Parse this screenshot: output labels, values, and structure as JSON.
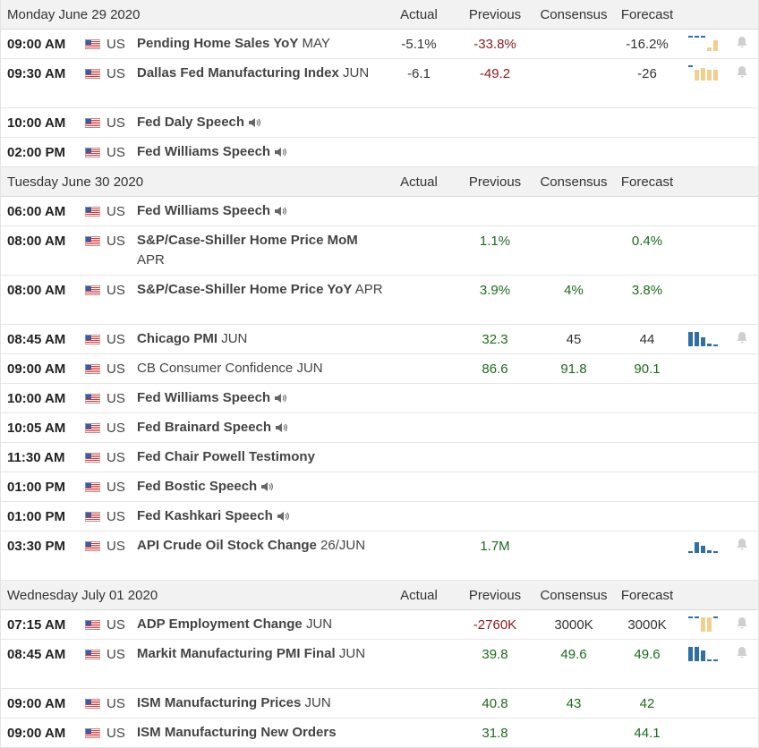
{
  "columns": {
    "actual": "Actual",
    "previous": "Previous",
    "consensus": "Consensus",
    "forecast": "Forecast"
  },
  "days": [
    {
      "title": "Monday June 29 2020",
      "events": [
        {
          "time": "09:00 AM",
          "country": "US",
          "name": "Pending Home Sales YoY",
          "suffix": "MAY",
          "actual": "-5.1%",
          "actual_class": "neutral",
          "previous": "-33.8%",
          "previous_class": "neg",
          "consensus": "",
          "forecast": "-16.2%",
          "forecast_class": "neutral",
          "spark": "mixed-a",
          "tall": false,
          "bold": true,
          "speech": false
        },
        {
          "time": "09:30 AM",
          "country": "US",
          "name": "Dallas Fed Manufacturing Index",
          "suffix": "JUN",
          "actual": "-6.1",
          "actual_class": "neutral",
          "previous": "-49.2",
          "previous_class": "neg",
          "consensus": "",
          "forecast": "-26",
          "forecast_class": "neutral",
          "spark": "mixed-b",
          "tall": true,
          "bold": true,
          "speech": false
        },
        {
          "time": "10:00 AM",
          "country": "US",
          "name": "Fed Daly Speech",
          "suffix": "",
          "actual": "",
          "previous": "",
          "consensus": "",
          "forecast": "",
          "spark": "",
          "tall": false,
          "bold": true,
          "speech": true
        },
        {
          "time": "02:00 PM",
          "country": "US",
          "name": "Fed Williams Speech",
          "suffix": "",
          "actual": "",
          "previous": "",
          "consensus": "",
          "forecast": "",
          "spark": "",
          "tall": false,
          "bold": true,
          "speech": true
        }
      ]
    },
    {
      "title": "Tuesday June 30 2020",
      "events": [
        {
          "time": "06:00 AM",
          "country": "US",
          "name": "Fed Williams Speech",
          "suffix": "",
          "actual": "",
          "previous": "",
          "consensus": "",
          "forecast": "",
          "spark": "",
          "tall": false,
          "bold": true,
          "speech": true
        },
        {
          "time": "08:00 AM",
          "country": "US",
          "name": "S&P/Case-Shiller Home Price MoM",
          "suffix": "APR",
          "actual": "",
          "previous": "1.1%",
          "previous_class": "pos",
          "consensus": "",
          "forecast": "0.4%",
          "forecast_class": "pos",
          "spark": "",
          "tall": true,
          "bold": true,
          "speech": false
        },
        {
          "time": "08:00 AM",
          "country": "US",
          "name": "S&P/Case-Shiller Home Price YoY",
          "suffix": "APR",
          "actual": "",
          "previous": "3.9%",
          "previous_class": "pos",
          "consensus": "4%",
          "consensus_class": "pos",
          "forecast": "3.8%",
          "forecast_class": "pos",
          "spark": "",
          "tall": true,
          "bold": true,
          "speech": false
        },
        {
          "time": "08:45 AM",
          "country": "US",
          "name": "Chicago PMI",
          "suffix": "JUN",
          "actual": "",
          "previous": "32.3",
          "previous_class": "pos",
          "consensus": "45",
          "consensus_class": "neutral",
          "forecast": "44",
          "forecast_class": "neutral",
          "spark": "blue-a",
          "tall": false,
          "bold": true,
          "speech": false
        },
        {
          "time": "09:00 AM",
          "country": "US",
          "name": "CB Consumer Confidence",
          "suffix": "JUN",
          "actual": "",
          "previous": "86.6",
          "previous_class": "pos",
          "consensus": "91.8",
          "consensus_class": "pos",
          "forecast": "90.1",
          "forecast_class": "pos",
          "spark": "",
          "tall": false,
          "bold": false,
          "speech": false
        },
        {
          "time": "10:00 AM",
          "country": "US",
          "name": "Fed Williams Speech",
          "suffix": "",
          "actual": "",
          "previous": "",
          "consensus": "",
          "forecast": "",
          "spark": "",
          "tall": false,
          "bold": true,
          "speech": true
        },
        {
          "time": "10:05 AM",
          "country": "US",
          "name": "Fed Brainard Speech",
          "suffix": "",
          "actual": "",
          "previous": "",
          "consensus": "",
          "forecast": "",
          "spark": "",
          "tall": false,
          "bold": true,
          "speech": true
        },
        {
          "time": "11:30 AM",
          "country": "US",
          "name": "Fed Chair Powell Testimony",
          "suffix": "",
          "actual": "",
          "previous": "",
          "consensus": "",
          "forecast": "",
          "spark": "",
          "tall": false,
          "bold": true,
          "speech": false
        },
        {
          "time": "01:00 PM",
          "country": "US",
          "name": "Fed Bostic Speech",
          "suffix": "",
          "actual": "",
          "previous": "",
          "consensus": "",
          "forecast": "",
          "spark": "",
          "tall": false,
          "bold": true,
          "speech": true
        },
        {
          "time": "01:00 PM",
          "country": "US",
          "name": "Fed Kashkari Speech",
          "suffix": "",
          "actual": "",
          "previous": "",
          "consensus": "",
          "forecast": "",
          "spark": "",
          "tall": false,
          "bold": true,
          "speech": true
        },
        {
          "time": "03:30 PM",
          "country": "US",
          "name": "API Crude Oil Stock Change",
          "suffix": "26/JUN",
          "actual": "",
          "previous": "1.7M",
          "previous_class": "pos",
          "consensus": "",
          "forecast": "",
          "spark": "blue-b",
          "tall": true,
          "bold": true,
          "speech": false
        }
      ]
    },
    {
      "title": "Wednesday July 01 2020",
      "events": [
        {
          "time": "07:15 AM",
          "country": "US",
          "name": "ADP Employment Change",
          "suffix": "JUN",
          "actual": "",
          "previous": "-2760K",
          "previous_class": "neg",
          "consensus": "3000K",
          "consensus_class": "neutral",
          "forecast": "3000K",
          "forecast_class": "neutral",
          "spark": "mixed-c",
          "tall": false,
          "bold": true,
          "speech": false
        },
        {
          "time": "08:45 AM",
          "country": "US",
          "name": "Markit Manufacturing PMI Final",
          "suffix": "JUN",
          "actual": "",
          "previous": "39.8",
          "previous_class": "pos",
          "consensus": "49.6",
          "consensus_class": "pos",
          "forecast": "49.6",
          "forecast_class": "pos",
          "spark": "blue-c",
          "tall": true,
          "bold": true,
          "speech": false
        },
        {
          "time": "09:00 AM",
          "country": "US",
          "name": "ISM Manufacturing Prices",
          "suffix": "JUN",
          "actual": "",
          "previous": "40.8",
          "previous_class": "pos",
          "consensus": "43",
          "consensus_class": "pos",
          "forecast": "42",
          "forecast_class": "pos",
          "spark": "",
          "tall": false,
          "bold": true,
          "speech": false
        },
        {
          "time": "09:00 AM",
          "country": "US",
          "name": "ISM Manufacturing New Orders",
          "suffix": "",
          "actual": "",
          "previous": "31.8",
          "previous_class": "pos",
          "consensus": "",
          "forecast": "44.1",
          "forecast_class": "pos",
          "spark": "",
          "tall": false,
          "bold": true,
          "speech": false
        }
      ]
    }
  ],
  "colors": {
    "negative": "#8b1a1a",
    "positive": "#1c6b1c",
    "spark_blue": "#2f6fa7",
    "spark_orange": "#f3cf8f",
    "header_bg": "#f2f2f2"
  },
  "icons": {
    "flag": "us-flag-icon",
    "speech": "speaker-icon",
    "alert": "bell-icon",
    "history": "sparkline-icon"
  }
}
